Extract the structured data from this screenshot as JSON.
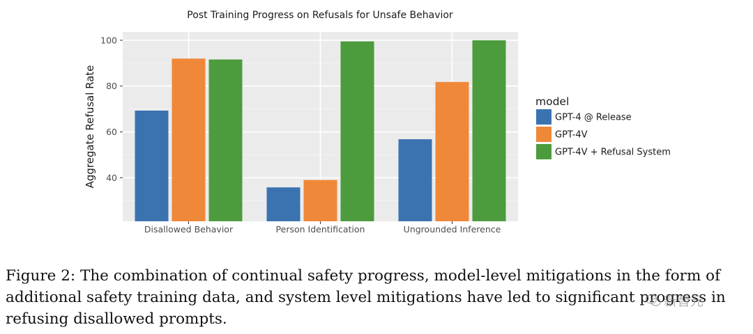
{
  "chart_data": {
    "type": "bar",
    "title": "Post Training Progress on Refusals for Unsafe Behavior",
    "xlabel": "",
    "ylabel": "Aggregate Refusal Rate",
    "categories": [
      "Disallowed Behavior",
      "Person Identification",
      "Ungrounded Inference"
    ],
    "series": [
      {
        "name": "GPT-4 @ Release",
        "color": "#3b73b0",
        "values": [
          69.3,
          35.8,
          56.8
        ]
      },
      {
        "name": "GPT-4V",
        "color": "#f0883a",
        "values": [
          92.0,
          39.0,
          81.8
        ]
      },
      {
        "name": "GPT-4V + Refusal System",
        "color": "#4c9c3d",
        "values": [
          91.6,
          99.5,
          100.0
        ]
      }
    ],
    "ylim": [
      21,
      103.6
    ],
    "yticks": [
      40,
      60,
      80,
      100
    ],
    "legend_title": "model",
    "legend_position": "right",
    "grid": true
  },
  "caption": "Figure 2: The combination of continual safety progress, model-level mitigations in the form of additional safety training data, and system level mitigations have led to significant progress in refusing disallowed prompts.",
  "watermark": "新智元"
}
